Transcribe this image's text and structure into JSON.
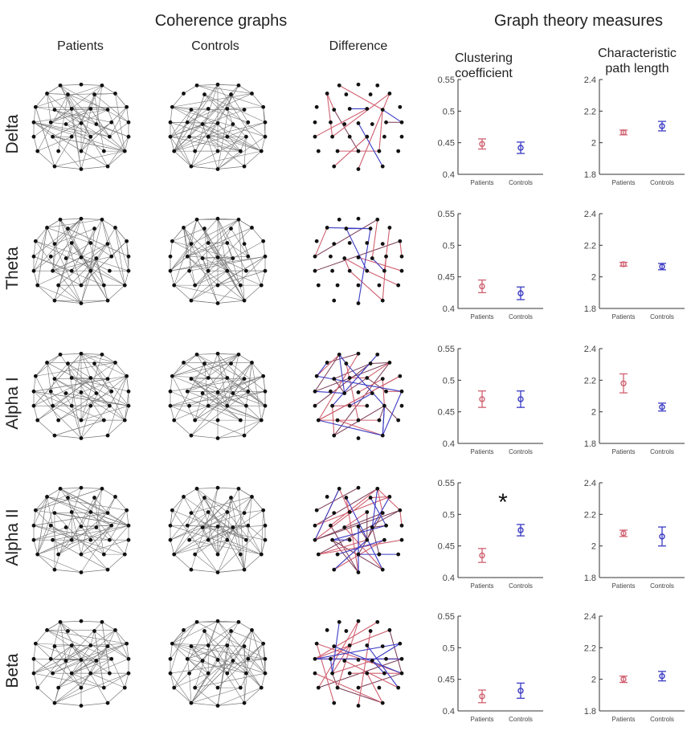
{
  "headers": {
    "coherence": "Coherence graphs",
    "measures": "Graph theory measures",
    "col_patients": "Patients",
    "col_controls": "Controls",
    "col_difference": "Difference",
    "clustering_l1": "Clustering",
    "clustering_l2": "coefficient",
    "path_l1": "Characteristic",
    "path_l2": "path length"
  },
  "bands": [
    "Delta",
    "Theta",
    "Alpha I",
    "Alpha II",
    "Beta"
  ],
  "colors": {
    "patients": "#d06070",
    "controls": "#3b3bc4",
    "edge": "#777777",
    "node": "#111111",
    "diff_dark": "#7a3a55",
    "axis": "#333333"
  },
  "significance_marker": "*",
  "chart_data": [
    {
      "type": "scatter",
      "measure": "Clustering coefficient",
      "categories": [
        "Patients",
        "Controls"
      ],
      "ylim": [
        0.4,
        0.55
      ],
      "yticks": [
        "0.4",
        "0.45",
        "0.5",
        "0.55"
      ],
      "panels": [
        {
          "band": "Delta",
          "means": [
            0.448,
            0.442
          ],
          "err": [
            0.008,
            0.009
          ],
          "significant": false
        },
        {
          "band": "Theta",
          "means": [
            0.435,
            0.424
          ],
          "err": [
            0.01,
            0.01
          ],
          "significant": false
        },
        {
          "band": "Alpha I",
          "means": [
            0.47,
            0.47
          ],
          "err": [
            0.013,
            0.013
          ],
          "significant": false
        },
        {
          "band": "Alpha II",
          "means": [
            0.435,
            0.475
          ],
          "err": [
            0.011,
            0.009
          ],
          "significant": true
        },
        {
          "band": "Beta",
          "means": [
            0.423,
            0.432
          ],
          "err": [
            0.01,
            0.012
          ],
          "significant": false
        }
      ]
    },
    {
      "type": "scatter",
      "measure": "Characteristic path length",
      "categories": [
        "Patients",
        "Controls"
      ],
      "ylim": [
        1.8,
        2.4
      ],
      "yticks": [
        "1.8",
        "2",
        "2.2",
        "2.4"
      ],
      "panels": [
        {
          "band": "Delta",
          "means": [
            2.065,
            2.105
          ],
          "err": [
            0.015,
            0.03
          ],
          "significant": false
        },
        {
          "band": "Theta",
          "means": [
            2.08,
            2.065
          ],
          "err": [
            0.012,
            0.02
          ],
          "significant": false
        },
        {
          "band": "Alpha I",
          "means": [
            2.18,
            2.03
          ],
          "err": [
            0.06,
            0.025
          ],
          "significant": false
        },
        {
          "band": "Alpha II",
          "means": [
            2.08,
            2.06
          ],
          "err": [
            0.02,
            0.06
          ],
          "significant": false
        },
        {
          "band": "Beta",
          "means": [
            2.0,
            2.02
          ],
          "err": [
            0.02,
            0.03
          ],
          "significant": false
        }
      ]
    }
  ]
}
